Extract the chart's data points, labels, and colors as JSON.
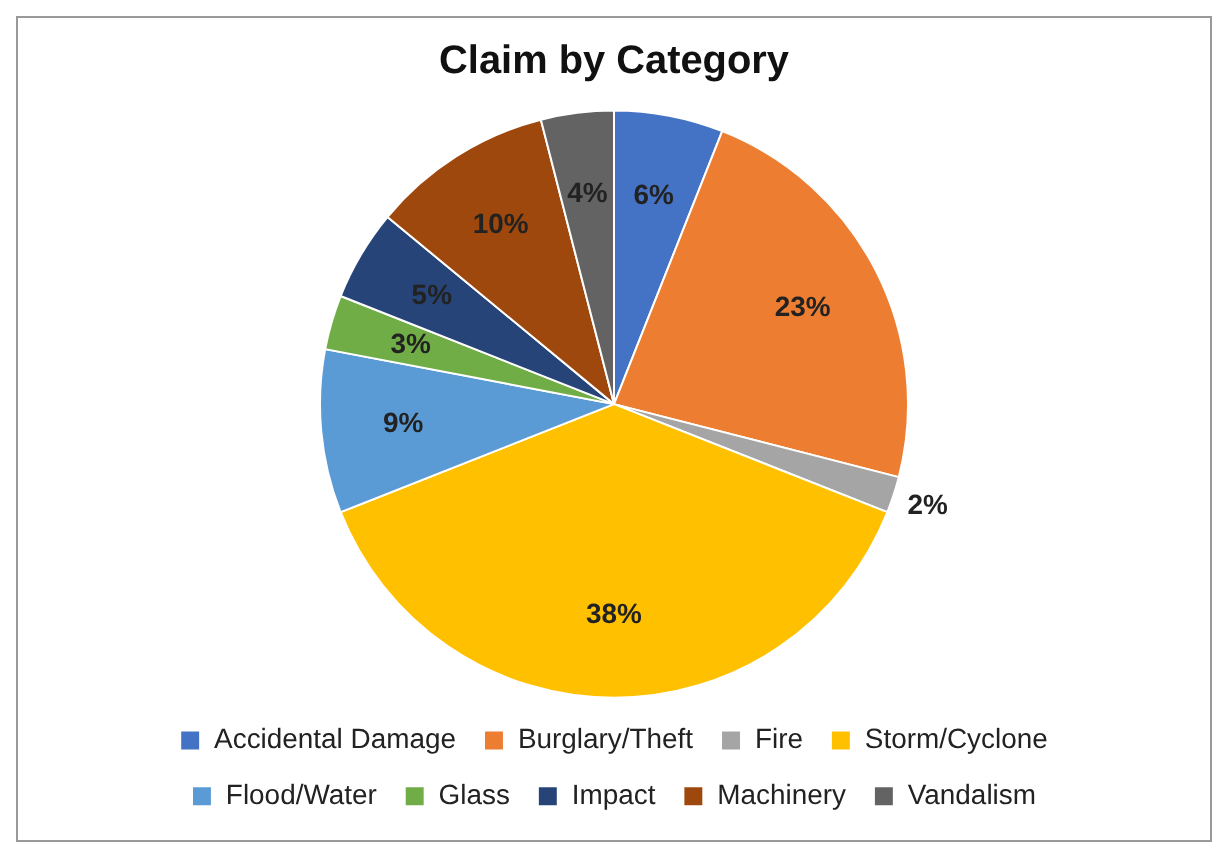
{
  "chart_data": {
    "type": "pie",
    "title": "Claim by Category",
    "categories": [
      "Accidental Damage",
      "Burglary/Theft",
      "Fire",
      "Storm/Cyclone",
      "Flood/Water",
      "Glass",
      "Impact",
      "Machinery",
      "Vandalism"
    ],
    "values": [
      6,
      23,
      2,
      38,
      9,
      3,
      5,
      10,
      4
    ],
    "value_labels": [
      "6%",
      "23%",
      "2%",
      "38%",
      "9%",
      "3%",
      "5%",
      "10%",
      "4%"
    ],
    "colors": [
      "#4472c4",
      "#ed7d31",
      "#a5a5a5",
      "#ffc000",
      "#5b9bd5",
      "#70ad47",
      "#264478",
      "#9e480e",
      "#636363"
    ],
    "legend": "bottom"
  }
}
